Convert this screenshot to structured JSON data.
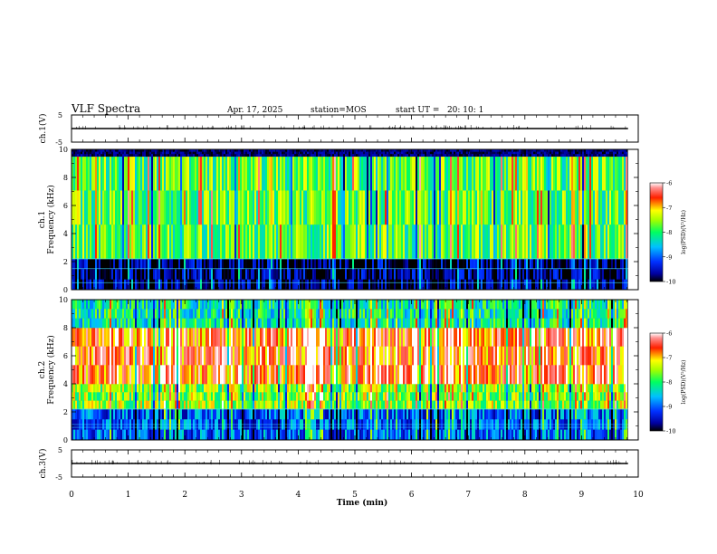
{
  "header": {
    "title": "VLF Spectra",
    "date": "Apr. 17, 2025",
    "station": "station=MOS",
    "start_ut": "start UT =   20: 10: 1"
  },
  "chart_data": [
    {
      "type": "line",
      "panel": "ch1-waveform",
      "ylabel": "ch.1(V)",
      "ylim": [
        -5,
        5
      ],
      "yticks": [
        "5",
        "-5"
      ],
      "x": [
        0,
        9.82
      ],
      "series": [
        {
          "values": [
            0,
            0
          ]
        }
      ]
    },
    {
      "type": "heatmap",
      "panel": "ch1-spectrogram",
      "ylabel": "ch.1\nFrequency (kHz)",
      "ylim": [
        0,
        10
      ],
      "yticks": [
        "0",
        "2",
        "4",
        "6",
        "8",
        "10"
      ],
      "colorbar": {
        "label": "log(PSD)(V²/Hz)",
        "ticks": [
          "-6",
          "-7",
          "-8",
          "-9",
          "-10"
        ],
        "range": [
          -10,
          -6
        ]
      },
      "bands": [
        {
          "f_lo": 0,
          "f_hi": 2.2,
          "level": 0.05
        },
        {
          "f_lo": 2.2,
          "f_hi": 9.5,
          "level": 0.55
        },
        {
          "f_lo": 9.5,
          "f_hi": 10,
          "level": 0.0
        }
      ]
    },
    {
      "type": "heatmap",
      "panel": "ch2-spectrogram",
      "ylabel": "ch.2\nFrequency (kHz)",
      "ylim": [
        0,
        10
      ],
      "yticks": [
        "0",
        "2",
        "4",
        "6",
        "8",
        "10"
      ],
      "colorbar": {
        "label": "log(PSD)(V²/Hz)",
        "ticks": [
          "-6",
          "-7",
          "-8",
          "-9",
          "-10"
        ],
        "range": [
          -10,
          -6
        ]
      },
      "bands": [
        {
          "f_lo": 0,
          "f_hi": 2.2,
          "level": 0.25
        },
        {
          "f_lo": 2.2,
          "f_hi": 4,
          "level": 0.6
        },
        {
          "f_lo": 4,
          "f_hi": 8,
          "level": 0.85
        },
        {
          "f_lo": 8,
          "f_hi": 10,
          "level": 0.45
        }
      ]
    },
    {
      "type": "line",
      "panel": "ch3-waveform",
      "ylabel": "ch.3(V)",
      "ylim": [
        -5,
        5
      ],
      "yticks": [
        "5",
        "-5"
      ],
      "x": [
        0,
        9.82
      ],
      "series": [
        {
          "values": [
            0,
            0
          ]
        }
      ]
    }
  ],
  "x_axis": {
    "label": "Time (min)",
    "range": [
      0,
      10
    ],
    "ticks": [
      "0",
      "1",
      "2",
      "3",
      "4",
      "5",
      "6",
      "7",
      "8",
      "9",
      "10"
    ]
  }
}
